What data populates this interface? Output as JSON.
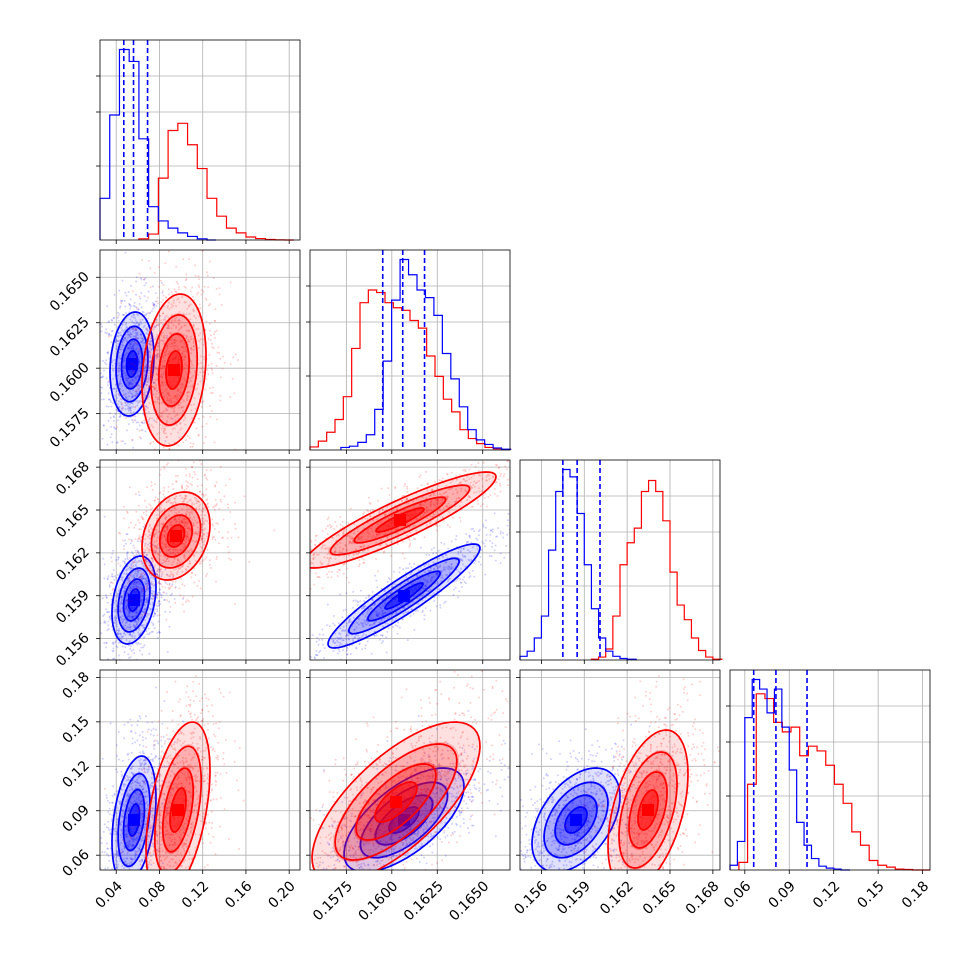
{
  "chart_data": {
    "type": "corner",
    "series": [
      {
        "name": "",
        "color": "#0000ff"
      },
      {
        "name": "",
        "color": "#ff0000"
      }
    ],
    "parameters": [
      {
        "ticks": [
          "0.04",
          "0.08",
          "0.12",
          "0.16",
          "0.20"
        ],
        "range": [
          0.025,
          0.21
        ],
        "blue_quantiles": [
          0.047,
          0.056,
          0.069
        ],
        "blue_hist": [
          {
            "x": [
              0.025,
              0.034,
              0.043,
              0.052,
              0.061,
              0.07,
              0.079,
              0.088,
              0.097,
              0.106,
              0.115,
              0.124
            ],
            "y": [
              0.35,
              1.05,
              1.6,
              1.5,
              0.85,
              0.28,
              0.16,
              0.1,
              0.06,
              0.03,
              0.01,
              0
            ]
          }
        ],
        "red_hist": [
          {
            "x": [
              0.061,
              0.07,
              0.079,
              0.088,
              0.097,
              0.106,
              0.115,
              0.124,
              0.133,
              0.142,
              0.151,
              0.16,
              0.169,
              0.178,
              0.187,
              0.196
            ],
            "y": [
              0.01,
              0.05,
              0.52,
              0.92,
              0.98,
              0.8,
              0.6,
              0.35,
              0.2,
              0.1,
              0.06,
              0.025,
              0.012,
              0.004,
              0.001,
              0
            ]
          }
        ]
      },
      {
        "ticks": [
          "0.1575",
          "0.1600",
          "0.1625",
          "0.1650"
        ],
        "range": [
          0.1555,
          0.1665
        ],
        "blue_quantiles": [
          0.1595,
          0.1606,
          0.1618
        ]
      },
      {
        "ticks": [
          "0.156",
          "0.159",
          "0.162",
          "0.165",
          "0.168"
        ],
        "range": [
          0.1545,
          0.1685
        ],
        "blue_quantiles": [
          0.1575,
          0.1585,
          0.1601
        ]
      },
      {
        "ticks": [
          "0.06",
          "0.09",
          "0.12",
          "0.15",
          "0.18"
        ],
        "range": [
          0.05,
          0.185
        ],
        "blue_quantiles": [
          0.066,
          0.081,
          0.102
        ]
      }
    ],
    "xlabel": "",
    "ylabel": "",
    "title": ""
  }
}
